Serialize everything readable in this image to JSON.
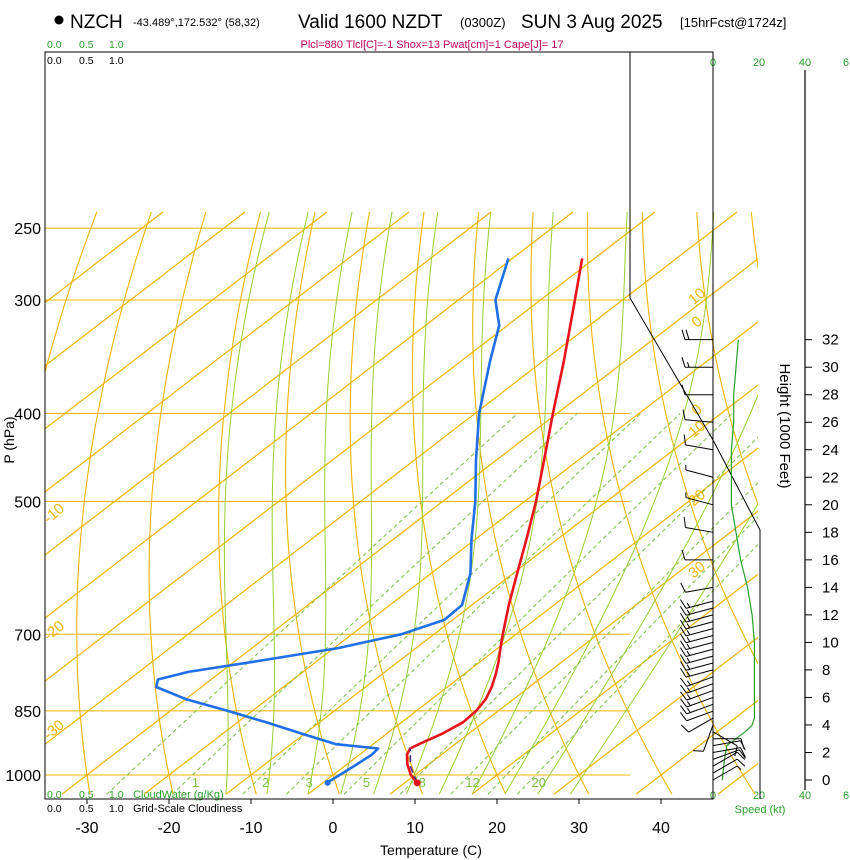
{
  "header": {
    "station": "NZCH",
    "coords": "-43.489°,172.532° (58,32)",
    "valid": "Valid 1600 NZDT",
    "zulu": "(0300Z)",
    "date": "SUN 3 Aug 2025",
    "forecast": "[15hrFcst@1724z]",
    "params": "Plcl=880 Tlcl[C]=-1 Shox=13 Pwat[cm]=1 Cape[J]= 17"
  },
  "legends": {
    "cloudwater_label": "CloudWater (g/Kg)",
    "cloudwater_scale": [
      "0.0",
      "0.5",
      "1.0"
    ],
    "cloudiness_label": "Grid-Scale Cloudiness",
    "cloudiness_scale": [
      "0.0",
      "0.5",
      "1.0"
    ],
    "speed_label": "Speed (kt)",
    "speed_scale": [
      "0",
      "20",
      "40",
      "6"
    ]
  },
  "colors": {
    "temperature": "#e8141c",
    "dewpoint": "#1f6fe8",
    "parcel": "#4b2a8c",
    "isotherm": "#f0b400",
    "dry_adiabat": "#f0b400",
    "moist_adiabat": "#9acd32",
    "mixing_ratio": "#7cc142",
    "cloud": "#2aa02a",
    "params_text": "#c0005a"
  },
  "chart_data": {
    "type": "skew-t",
    "xlabel": "Temperature (C)",
    "ylabel": "P (hPa)",
    "y2label": "Height (1000 Feet)",
    "x_ticks": [
      -30,
      -20,
      -10,
      0,
      10,
      20,
      30,
      40
    ],
    "p_ticks": [
      250,
      300,
      400,
      500,
      700,
      850,
      1000
    ],
    "height_ticks": [
      0,
      2,
      4,
      6,
      8,
      10,
      12,
      14,
      16,
      18,
      20,
      22,
      24,
      26,
      28,
      30,
      32
    ],
    "isotherm_labels": [
      {
        "t": 0,
        "p": 320,
        "text": "0"
      },
      {
        "t": 10,
        "p": 420,
        "text": "10"
      },
      {
        "t": 20,
        "p": 500,
        "text": "20"
      },
      {
        "t": 30,
        "p": 600,
        "text": "30"
      },
      {
        "t": -10,
        "p": 520,
        "text": "-10"
      },
      {
        "t": -20,
        "p": 700,
        "text": "-20"
      },
      {
        "t": -30,
        "p": 900,
        "text": "-30"
      },
      {
        "t": 10,
        "p": 300,
        "text": "10"
      },
      {
        "t": 0,
        "p": 400,
        "text": "0"
      }
    ],
    "mixing_ratio_labels": [
      "1",
      "2",
      "3",
      "5",
      "8",
      "12",
      "20"
    ],
    "temperature": [
      {
        "p": 1020,
        "t": 11.5
      },
      {
        "p": 1000,
        "t": 9.5
      },
      {
        "p": 975,
        "t": 7.5
      },
      {
        "p": 950,
        "t": 5.8
      },
      {
        "p": 935,
        "t": 5.2
      },
      {
        "p": 925,
        "t": 5.6
      },
      {
        "p": 900,
        "t": 6.8
      },
      {
        "p": 875,
        "t": 7.5
      },
      {
        "p": 850,
        "t": 7.3
      },
      {
        "p": 825,
        "t": 6.6
      },
      {
        "p": 800,
        "t": 5.4
      },
      {
        "p": 775,
        "t": 3.9
      },
      {
        "p": 750,
        "t": 2.2
      },
      {
        "p": 725,
        "t": 0.3
      },
      {
        "p": 700,
        "t": -1.6
      },
      {
        "p": 650,
        "t": -5.5
      },
      {
        "p": 600,
        "t": -9.5
      },
      {
        "p": 550,
        "t": -13.8
      },
      {
        "p": 500,
        "t": -18.6
      },
      {
        "p": 450,
        "t": -24.2
      },
      {
        "p": 400,
        "t": -30.5
      },
      {
        "p": 350,
        "t": -37.5
      },
      {
        "p": 300,
        "t": -45.8
      },
      {
        "p": 270,
        "t": -51.5
      }
    ],
    "dewpoint": [
      {
        "p": 1020,
        "t": 0.5
      },
      {
        "p": 1000,
        "t": 0.8
      },
      {
        "p": 975,
        "t": 1.2
      },
      {
        "p": 950,
        "t": 1.5
      },
      {
        "p": 935,
        "t": 1.3
      },
      {
        "p": 925,
        "t": -4.5
      },
      {
        "p": 900,
        "t": -10.5
      },
      {
        "p": 875,
        "t": -16.5
      },
      {
        "p": 850,
        "t": -23.0
      },
      {
        "p": 825,
        "t": -30.0
      },
      {
        "p": 800,
        "t": -35.5
      },
      {
        "p": 785,
        "t": -36.5
      },
      {
        "p": 770,
        "t": -34.0
      },
      {
        "p": 750,
        "t": -27.5
      },
      {
        "p": 725,
        "t": -19.5
      },
      {
        "p": 700,
        "t": -14.0
      },
      {
        "p": 675,
        "t": -11.0
      },
      {
        "p": 650,
        "t": -11.2
      },
      {
        "p": 600,
        "t": -15.2
      },
      {
        "p": 550,
        "t": -20.5
      },
      {
        "p": 500,
        "t": -26.0
      },
      {
        "p": 450,
        "t": -32.5
      },
      {
        "p": 400,
        "t": -39.5
      },
      {
        "p": 350,
        "t": -46.5
      },
      {
        "p": 320,
        "t": -51.0
      },
      {
        "p": 300,
        "t": -55.5
      },
      {
        "p": 270,
        "t": -60.5
      }
    ],
    "parcel": [
      {
        "p": 1020,
        "t": 11.5
      },
      {
        "p": 980,
        "t": 8.2
      },
      {
        "p": 935,
        "t": 5.2
      }
    ],
    "surface_dewpoint_marker": {
      "p": 1020,
      "t": 1.8
    },
    "wind": [
      {
        "h": 0.0,
        "speed": 8,
        "dir": 60
      },
      {
        "h": 0.5,
        "speed": 10,
        "dir": 60
      },
      {
        "h": 1.0,
        "speed": 12,
        "dir": 60
      },
      {
        "h": 1.5,
        "speed": 12,
        "dir": 70
      },
      {
        "h": 2.0,
        "speed": 12,
        "dir": 80
      },
      {
        "h": 2.5,
        "speed": 12,
        "dir": 80
      },
      {
        "h": 3.0,
        "speed": 10,
        "dir": 90
      },
      {
        "h": 3.5,
        "speed": 10,
        "dir": 120
      },
      {
        "h": 4.0,
        "speed": 10,
        "dir": 200
      },
      {
        "h": 4.5,
        "speed": 12,
        "dir": 240
      },
      {
        "h": 5.0,
        "speed": 14,
        "dir": 250
      },
      {
        "h": 5.5,
        "speed": 16,
        "dir": 250
      },
      {
        "h": 6.0,
        "speed": 18,
        "dir": 250
      },
      {
        "h": 6.5,
        "speed": 18,
        "dir": 250
      },
      {
        "h": 7.0,
        "speed": 18,
        "dir": 250
      },
      {
        "h": 7.5,
        "speed": 18,
        "dir": 250
      },
      {
        "h": 8.0,
        "speed": 18,
        "dir": 255
      },
      {
        "h": 8.5,
        "speed": 18,
        "dir": 255
      },
      {
        "h": 9.0,
        "speed": 18,
        "dir": 255
      },
      {
        "h": 9.5,
        "speed": 18,
        "dir": 255
      },
      {
        "h": 10.0,
        "speed": 18,
        "dir": 255
      },
      {
        "h": 10.5,
        "speed": 18,
        "dir": 255
      },
      {
        "h": 11.0,
        "speed": 18,
        "dir": 255
      },
      {
        "h": 11.5,
        "speed": 18,
        "dir": 255
      },
      {
        "h": 12.0,
        "speed": 16,
        "dir": 255
      },
      {
        "h": 12.5,
        "speed": 16,
        "dir": 255
      },
      {
        "h": 13.0,
        "speed": 16,
        "dir": 255
      },
      {
        "h": 14.0,
        "speed": 14,
        "dir": 260
      },
      {
        "h": 16.0,
        "speed": 12,
        "dir": 270
      },
      {
        "h": 18.0,
        "speed": 10,
        "dir": 280
      },
      {
        "h": 20.0,
        "speed": 8,
        "dir": 285
      },
      {
        "h": 22.0,
        "speed": 8,
        "dir": 285
      },
      {
        "h": 24.0,
        "speed": 10,
        "dir": 280
      },
      {
        "h": 26.0,
        "speed": 12,
        "dir": 275
      },
      {
        "h": 28.0,
        "speed": 14,
        "dir": 270
      },
      {
        "h": 30.0,
        "speed": 18,
        "dir": 270
      },
      {
        "h": 32.0,
        "speed": 20,
        "dir": 270
      }
    ],
    "wind_speed_profile": [
      {
        "h": 0.0,
        "speed": 4
      },
      {
        "h": 1.5,
        "speed": 5
      },
      {
        "h": 2.5,
        "speed": 6
      },
      {
        "h": 3.0,
        "speed": 10
      },
      {
        "h": 3.5,
        "speed": 14
      },
      {
        "h": 4.0,
        "speed": 17
      },
      {
        "h": 4.5,
        "speed": 18
      },
      {
        "h": 6.0,
        "speed": 18
      },
      {
        "h": 8.0,
        "speed": 18
      },
      {
        "h": 10.0,
        "speed": 18
      },
      {
        "h": 12.0,
        "speed": 17
      },
      {
        "h": 14.0,
        "speed": 15
      },
      {
        "h": 16.0,
        "speed": 12
      },
      {
        "h": 18.0,
        "speed": 10
      },
      {
        "h": 20.0,
        "speed": 8
      },
      {
        "h": 22.0,
        "speed": 8
      },
      {
        "h": 24.0,
        "speed": 8
      },
      {
        "h": 26.0,
        "speed": 9
      },
      {
        "h": 28.0,
        "speed": 9
      },
      {
        "h": 30.0,
        "speed": 10
      },
      {
        "h": 32.0,
        "speed": 11
      }
    ]
  }
}
